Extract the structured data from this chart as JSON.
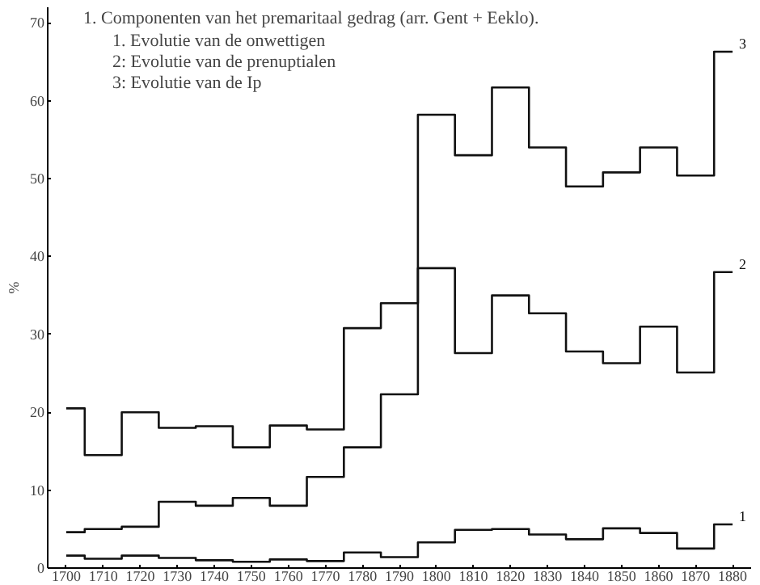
{
  "chart_data": {
    "type": "step",
    "title": "1. Componenten van het premaritaal gedrag (arr. Gent + Eeklo).",
    "ylabel": "%",
    "annotations": [
      "1. Evolutie van de onwettigen",
      "2: Evolutie van de prenuptialen",
      "3: Evolutie van de Ip"
    ],
    "x": [
      1700,
      1710,
      1720,
      1730,
      1740,
      1750,
      1760,
      1770,
      1780,
      1790,
      1800,
      1810,
      1820,
      1830,
      1840,
      1850,
      1860,
      1870,
      1880
    ],
    "series": [
      {
        "name": "1",
        "color": "#111111",
        "values": [
          1.6,
          1.2,
          1.6,
          1.3,
          1.0,
          0.8,
          1.1,
          0.9,
          2.0,
          1.4,
          3.3,
          4.9,
          5.0,
          4.3,
          3.7,
          5.1,
          4.5,
          2.5,
          5.6
        ]
      },
      {
        "name": "2",
        "color": "#111111",
        "values": [
          4.6,
          5.0,
          5.3,
          8.5,
          8.0,
          9.0,
          8.0,
          11.7,
          15.5,
          22.3,
          38.5,
          27.6,
          35.0,
          32.7,
          27.8,
          26.3,
          31.0,
          25.1,
          38.0
        ]
      },
      {
        "name": "3",
        "color": "#111111",
        "values": [
          20.5,
          14.5,
          20.0,
          18.0,
          18.2,
          15.5,
          18.3,
          17.8,
          30.8,
          34.0,
          58.2,
          53.0,
          61.7,
          54.0,
          49.0,
          50.8,
          54.0,
          50.4,
          66.3
        ]
      }
    ],
    "xlim": [
      1695,
      1885
    ],
    "ylim": [
      0,
      72
    ],
    "xticks": [
      1700,
      1710,
      1720,
      1730,
      1740,
      1750,
      1760,
      1770,
      1780,
      1790,
      1800,
      1810,
      1820,
      1830,
      1840,
      1850,
      1860,
      1870,
      1880
    ],
    "yticks": [
      0,
      10,
      20,
      30,
      40,
      50,
      60,
      70
    ],
    "grid": false
  }
}
